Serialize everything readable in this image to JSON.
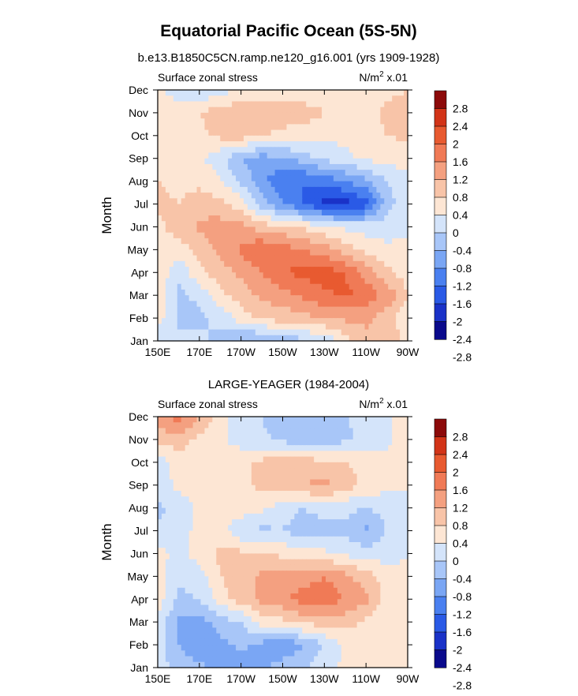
{
  "figure": {
    "title": "Equatorial Pacific Ocean (5S-5N)"
  },
  "colors": {
    "scale": [
      "#0a0a8c",
      "#1a32c8",
      "#2a5ae6",
      "#4a80f0",
      "#7aa6f4",
      "#a8c6f8",
      "#d4e4fa",
      "#fde6d4",
      "#f8c4a8",
      "#f4a080",
      "#f07a56",
      "#e85a30",
      "#d23418",
      "#8c0a0a"
    ]
  },
  "chart_data": [
    {
      "type": "heatmap",
      "title": "b.e13.B1850C5CN.ramp.ne120_g16.001 (yrs 1909-1928)",
      "left_label": "Surface zonal stress",
      "units_label": "N/m² x.01",
      "ylabel": "Month",
      "x_ticks": [
        "150E",
        "170E",
        "170W",
        "150W",
        "130W",
        "110W",
        "90W"
      ],
      "x_values_deg_east": [
        150,
        170,
        190,
        210,
        230,
        250,
        270
      ],
      "y_ticks": [
        "Jan",
        "Feb",
        "Mar",
        "Apr",
        "May",
        "Jun",
        "Jul",
        "Aug",
        "Sep",
        "Oct",
        "Nov",
        "Dec"
      ],
      "colorbar_levels": [
        -2.8,
        -2.4,
        -2,
        -1.6,
        -1.2,
        -0.8,
        -0.4,
        0,
        0.4,
        0.8,
        1.2,
        1.6,
        2,
        2.4,
        2.8
      ],
      "colorbar_tick_labels": [
        "2.8",
        "2.4",
        "2",
        "1.6",
        "1.2",
        "0.8",
        "0.4",
        "0",
        "-0.4",
        "-0.8",
        "-1.2",
        "-1.6",
        "-2",
        "-2.4",
        "-2.8"
      ],
      "grid": [
        [
          -0.3,
          -0.3,
          -0.3,
          -0.5,
          -0.9,
          -0.9,
          -0.7,
          -0.5,
          -0.3,
          0.2,
          0.7,
          0.7,
          0.3
        ],
        [
          0.2,
          -0.5,
          -0.5,
          -0.3,
          0.2,
          0.5,
          0.6,
          0.7,
          0.8,
          0.9,
          0.9,
          0.6,
          0.1
        ],
        [
          0.3,
          -0.5,
          -0.3,
          0.3,
          0.6,
          0.9,
          1.0,
          1.3,
          1.5,
          1.7,
          1.5,
          1.1,
          0.4
        ],
        [
          0.3,
          -0.3,
          0.3,
          0.6,
          0.9,
          1.2,
          1.6,
          1.7,
          1.8,
          1.6,
          1.0,
          0.5,
          0.2
        ],
        [
          0.3,
          0.2,
          0.5,
          0.9,
          1.3,
          1.6,
          1.4,
          1.2,
          1.0,
          0.6,
          0.3,
          0.1,
          0.1
        ],
        [
          0.3,
          0.6,
          0.9,
          1.0,
          0.9,
          0.6,
          0.5,
          0.3,
          0.1,
          -0.1,
          -0.2,
          -0.2,
          -0.1
        ],
        [
          0.5,
          0.4,
          0.6,
          0.5,
          0.2,
          -0.6,
          -1.2,
          -1.6,
          -2.1,
          -2.2,
          -1.8,
          -0.6,
          -0.1
        ],
        [
          0.4,
          0.3,
          0.3,
          0.1,
          -0.5,
          -1.1,
          -1.5,
          -1.6,
          -1.5,
          -1.2,
          -0.9,
          -0.4,
          -0.1
        ],
        [
          0.2,
          0.2,
          0.1,
          -0.3,
          -0.8,
          -1.0,
          -0.9,
          -0.6,
          -0.3,
          -0.1,
          0.1,
          0.1,
          0.2
        ],
        [
          0.1,
          0.2,
          0.3,
          0.5,
          0.6,
          0.4,
          0.3,
          0.2,
          0.1,
          0.1,
          0.2,
          0.4,
          0.5
        ],
        [
          0.1,
          0.2,
          0.4,
          0.6,
          0.7,
          0.7,
          0.6,
          0.6,
          0.4,
          0.3,
          0.2,
          0.5,
          0.6
        ],
        [
          0.1,
          -0.2,
          -0.4,
          -0.2,
          0.1,
          0.2,
          0.2,
          0.1,
          0.1,
          0.1,
          0.1,
          0.3,
          0.4
        ]
      ],
      "ylim": [
        "Jan",
        "Dec"
      ],
      "xlim": [
        "150E",
        "90W"
      ]
    },
    {
      "type": "heatmap",
      "title": "LARGE-YEAGER (1984-2004)",
      "left_label": "Surface zonal stress",
      "units_label": "N/m² x.01",
      "ylabel": "Month",
      "x_ticks": [
        "150E",
        "170E",
        "170W",
        "150W",
        "130W",
        "110W",
        "90W"
      ],
      "x_values_deg_east": [
        150,
        170,
        190,
        210,
        230,
        250,
        270
      ],
      "y_ticks": [
        "Jan",
        "Feb",
        "Mar",
        "Apr",
        "May",
        "Jun",
        "Jul",
        "Aug",
        "Sep",
        "Oct",
        "Nov",
        "Dec"
      ],
      "colorbar_levels": [
        -2.8,
        -2.4,
        -2,
        -1.6,
        -1.2,
        -0.8,
        -0.4,
        0,
        0.4,
        0.8,
        1.2,
        1.6,
        2,
        2.4,
        2.8
      ],
      "colorbar_tick_labels": [
        "2.8",
        "2.4",
        "2",
        "1.6",
        "1.2",
        "0.8",
        "0.4",
        "0",
        "-0.4",
        "-0.8",
        "-1.2",
        "-1.6",
        "-2",
        "-2.4",
        "-2.8"
      ],
      "grid": [
        [
          -0.2,
          -0.6,
          -0.7,
          -0.9,
          -1.1,
          -0.9,
          -0.6,
          -0.4,
          -0.2,
          0.1,
          0.2,
          0.2,
          0.2
        ],
        [
          -0.2,
          -0.8,
          -1.1,
          -0.9,
          -0.7,
          -0.9,
          -1.2,
          -0.8,
          -0.4,
          0.1,
          0.2,
          0.1,
          0.1
        ],
        [
          -0.1,
          -0.9,
          -1.0,
          -0.6,
          -0.4,
          0.2,
          0.3,
          0.5,
          0.6,
          0.6,
          0.3,
          0.1,
          0.0
        ],
        [
          0.2,
          -0.5,
          -0.4,
          0.2,
          0.6,
          0.9,
          1.1,
          1.4,
          1.5,
          1.2,
          0.9,
          0.2,
          0.1
        ],
        [
          0.2,
          -0.3,
          -0.2,
          0.4,
          0.6,
          0.9,
          1.0,
          1.0,
          1.2,
          0.9,
          0.6,
          0.2,
          0.1
        ],
        [
          0.2,
          -0.2,
          0.2,
          0.5,
          0.5,
          0.4,
          0.3,
          0.2,
          0.1,
          -0.1,
          -0.2,
          -0.2,
          0.0
        ],
        [
          -0.3,
          -0.3,
          0.2,
          0.2,
          -0.3,
          -0.5,
          -0.4,
          -0.7,
          -0.6,
          -0.5,
          -0.9,
          -0.4,
          -0.1
        ],
        [
          -0.5,
          -0.2,
          0.1,
          0.1,
          0.2,
          0.1,
          -0.2,
          -0.4,
          -0.2,
          -0.3,
          -0.4,
          -0.2,
          0.0
        ],
        [
          -0.3,
          0.1,
          0.1,
          0.2,
          0.3,
          0.5,
          0.6,
          0.8,
          0.9,
          0.6,
          0.3,
          0.1,
          0.0
        ],
        [
          -0.2,
          0.2,
          0.2,
          0.2,
          0.3,
          0.5,
          0.6,
          0.6,
          0.5,
          0.4,
          0.2,
          0.1,
          0.1
        ],
        [
          0.6,
          0.6,
          0.3,
          0.1,
          -0.2,
          -0.3,
          -0.5,
          -0.7,
          -0.6,
          -0.5,
          -0.3,
          -0.1,
          0.3
        ],
        [
          0.9,
          1.4,
          0.8,
          0.2,
          -0.3,
          -0.4,
          -0.7,
          -0.8,
          -0.6,
          -0.4,
          -0.3,
          -0.1,
          0.2
        ]
      ],
      "ylim": [
        "Jan",
        "Dec"
      ],
      "xlim": [
        "150E",
        "90W"
      ]
    }
  ]
}
